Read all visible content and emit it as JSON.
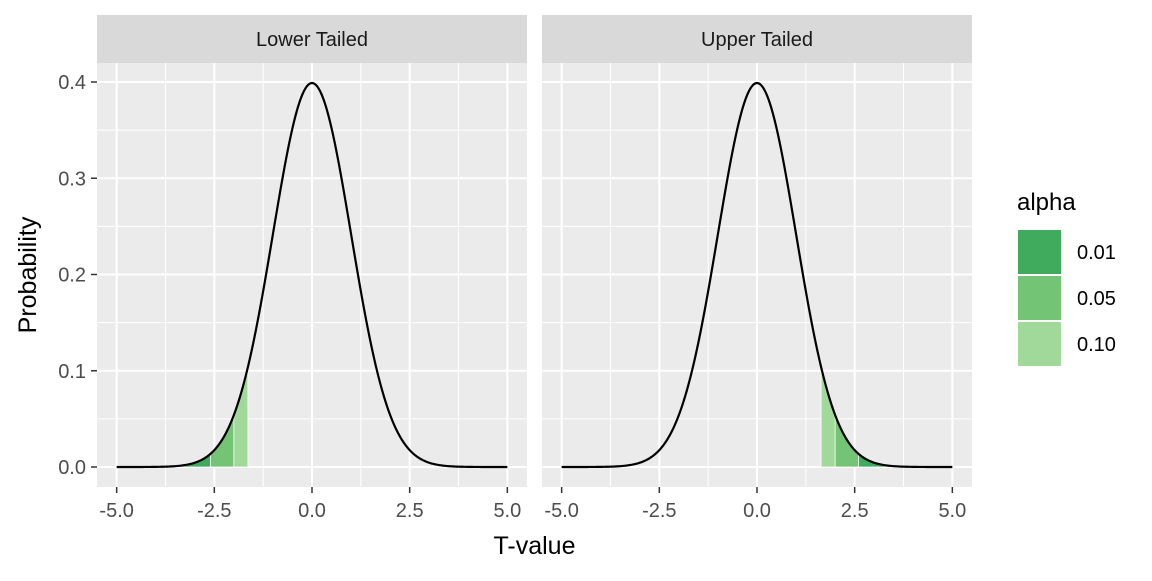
{
  "chart_data": {
    "type": "area",
    "xlabel": "T-value",
    "ylabel": "Probability",
    "xlim": [
      -5.0,
      5.0
    ],
    "ylim": [
      0.0,
      0.4
    ],
    "x_ticks": [
      "-5.0",
      "-2.5",
      "0.0",
      "2.5",
      "5.0"
    ],
    "x_tick_values": [
      -5.0,
      -2.5,
      0.0,
      2.5,
      5.0
    ],
    "y_ticks": [
      "0.0",
      "0.1",
      "0.2",
      "0.3",
      "0.4"
    ],
    "y_tick_values": [
      0.0,
      0.1,
      0.2,
      0.3,
      0.4
    ],
    "curve": "standard normal density",
    "grid": true,
    "legend": {
      "title": "alpha",
      "placement": "right",
      "entries": [
        {
          "label": "0.01",
          "color": "#41ab5d"
        },
        {
          "label": "0.05",
          "color": "#74c476"
        },
        {
          "label": "0.10",
          "color": "#a1d99b"
        }
      ]
    },
    "panels": [
      {
        "title": "Lower Tailed",
        "shaded_regions": [
          {
            "alpha": "0.10",
            "x_from": -5.0,
            "x_to": -1.64
          },
          {
            "alpha": "0.05",
            "x_from": -5.0,
            "x_to": -2.0
          },
          {
            "alpha": "0.01",
            "x_from": -5.0,
            "x_to": -2.6
          }
        ]
      },
      {
        "title": "Upper Tailed",
        "shaded_regions": [
          {
            "alpha": "0.10",
            "x_from": 1.64,
            "x_to": 5.0
          },
          {
            "alpha": "0.05",
            "x_from": 2.0,
            "x_to": 5.0
          },
          {
            "alpha": "0.01",
            "x_from": 2.6,
            "x_to": 5.0
          }
        ]
      }
    ]
  }
}
